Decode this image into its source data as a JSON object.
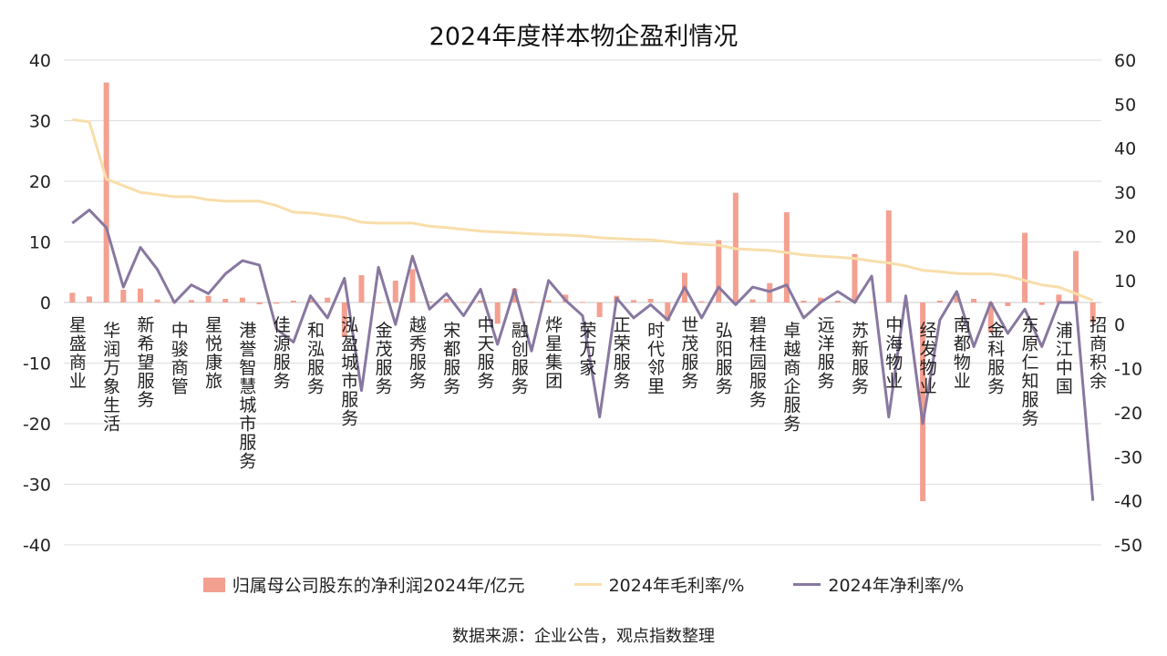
{
  "chart_data": {
    "type": "bar",
    "title": "2024年度样本物企盈利情况",
    "source": "数据来源：企业公告，观点指数整理",
    "colors": {
      "bar": "#f4a090",
      "gross_margin": "#f8deaa",
      "net_margin": "#8878a0"
    },
    "ylim_left": [
      -40,
      40
    ],
    "ylim_right": [
      -50,
      60
    ],
    "yticks_left": [
      "40",
      "30",
      "20",
      "10",
      "0",
      "-10",
      "-20",
      "-30",
      "-40"
    ],
    "yticks_right": [
      "60",
      "50",
      "40",
      "30",
      "20",
      "10",
      "0",
      "-10",
      "-20",
      "-30",
      "-40",
      "-50"
    ],
    "legend_position": "bottom",
    "categories": [
      "星盛商业",
      "华润万象生活",
      "新希望服务",
      "中骏商管",
      "星悦康旅",
      "港誉智慧城市服务",
      "佳源服务",
      "和泓服务",
      "泓盈城市服务",
      "金茂服务",
      "越秀服务",
      "宋都服务",
      "中天服务",
      "融创服务",
      "烨星集团",
      "荣万家",
      "正荣服务",
      "时代邻里",
      "世茂服务",
      "弘阳服务",
      "碧桂园服务",
      "卓越商企服务",
      "远洋服务",
      "苏新服务",
      "中海物业",
      "经发物业",
      "南都物业",
      "金科服务",
      "东原仁知服务",
      "浦江中国",
      "招商积余"
    ],
    "series": [
      {
        "name": "归属母公司股东的净利润2024年/亿元",
        "axis": "left",
        "values": [
          1.6,
          36.3,
          2.3,
          0.4,
          1.1,
          0.8,
          -0.3,
          0.3,
          0.8,
          -5.7,
          3.6,
          0.2,
          0.1,
          -3.5,
          0.1,
          0.4,
          -2.4,
          0.4,
          -3.0,
          0.2,
          -0.3,
          2.9,
          0.3,
          0.1,
          15.0,
          -0.8,
          0.3,
          0.4,
          -0.6,
          -0.4,
          8.5
        ]
      },
      {
        "name": "2024年毛利率/%",
        "axis": "right",
        "values": [
          46.5,
          33.0,
          30.0,
          29.0,
          28.3,
          28.0,
          26.0,
          24.8,
          23.0,
          23.0,
          21.8,
          21.5,
          21.2,
          20.6,
          20.3,
          19.7,
          19.4,
          18.2,
          17.0,
          16.3,
          15.0,
          14.4,
          13.0,
          11.8,
          10.0,
          8.0,
          6.0,
          5.5,
          5.0,
          4.5,
          3.5
        ]
      },
      {
        "name": "2024年净利率/%",
        "axis": "right",
        "values": [
          23.0,
          22.0,
          17.5,
          5.0,
          7.0,
          14.0,
          -4.0,
          1.5,
          -15.0,
          0.0,
          15.5,
          7.0,
          8.0,
          -6.0,
          10.0,
          2.0,
          -21.0,
          4.5,
          8.5,
          8.5,
          7.5,
          9.0,
          1.5,
          5.0,
          -21.0,
          -22.5,
          7.5,
          -6.0,
          -5.0,
          5.0,
          -40.0
        ]
      }
    ],
    "series_full": {
      "net_profit": [
        1.6,
        1.0,
        36.3,
        2.1,
        2.3,
        0.5,
        0.4,
        0.4,
        1.1,
        0.6,
        0.8,
        -0.3,
        -0.2,
        0.3,
        0.4,
        0.8,
        -5.7,
        4.5,
        -0.1,
        3.6,
        5.5,
        0.2,
        0.6,
        0.1,
        0.3,
        -3.5,
        2.3,
        0.1,
        0.4,
        1.3,
        0.1,
        -2.4,
        1.1,
        0.4,
        0.6,
        -3.0,
        4.9,
        0.2,
        10.3,
        18.1,
        0.5,
        3.2,
        14.9,
        0.3,
        0.8,
        0.3,
        8.0,
        0.1,
        15.2,
        -0.8,
        -32.8,
        0.3,
        1.5,
        0.6,
        -5.0,
        -0.6,
        11.5,
        -0.4,
        1.3,
        8.5,
        -3.3
      ],
      "gross_margin": [
        46.5,
        46.0,
        33.0,
        31.5,
        30.0,
        29.5,
        29.0,
        29.0,
        28.3,
        28.0,
        28.0,
        28.0,
        27.0,
        25.5,
        25.3,
        24.8,
        24.3,
        23.2,
        23.0,
        23.0,
        23.0,
        22.3,
        22.0,
        21.6,
        21.2,
        21.0,
        20.8,
        20.6,
        20.4,
        20.3,
        20.1,
        19.7,
        19.5,
        19.3,
        19.2,
        18.8,
        18.4,
        18.2,
        18.0,
        17.2,
        17.0,
        16.8,
        16.3,
        15.8,
        15.5,
        15.3,
        15.0,
        14.4,
        14.0,
        13.3,
        12.3,
        12.0,
        11.6,
        11.5,
        11.5,
        11.0,
        10.0,
        9.0,
        8.5,
        7.0,
        5.5
      ],
      "net_margin": [
        23.0,
        26.0,
        22.0,
        8.5,
        17.5,
        12.5,
        5.0,
        9.0,
        7.0,
        11.5,
        14.5,
        13.5,
        -1.0,
        -4.0,
        6.5,
        1.5,
        10.5,
        -15.0,
        13.0,
        0.0,
        15.5,
        3.5,
        7.0,
        2.0,
        8.0,
        -4.5,
        8.0,
        -6.0,
        10.0,
        5.5,
        2.0,
        -21.0,
        6.0,
        1.5,
        4.5,
        1.0,
        8.5,
        1.5,
        8.5,
        4.5,
        8.5,
        7.5,
        9.0,
        1.5,
        5.0,
        7.5,
        5.0,
        11.0,
        -21.0,
        6.5,
        -22.5,
        1.0,
        7.5,
        -5.0,
        5.0,
        -2.0,
        3.5,
        -5.0,
        5.0,
        5.0,
        -40.0
      ]
    }
  }
}
